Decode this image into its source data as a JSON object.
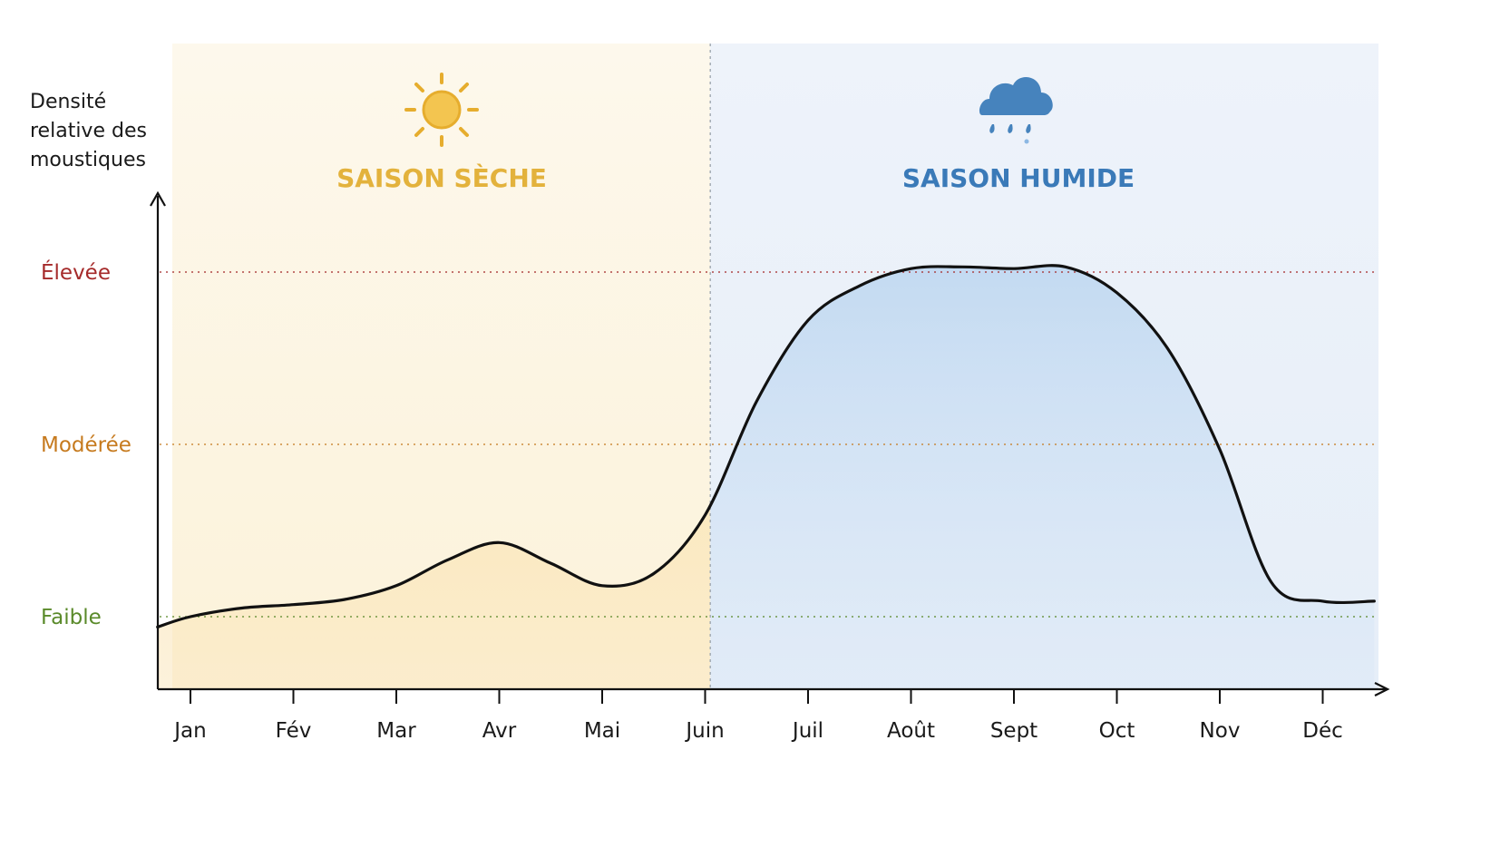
{
  "chart_data": {
    "type": "area",
    "ylabel": [
      "Densité",
      "relative des",
      "moustiques"
    ],
    "categories": [
      "Jan",
      "Fév",
      "Mar",
      "Avr",
      "Mai",
      "Juin",
      "Juil",
      "Août",
      "Sept",
      "Oct",
      "Nov",
      "Déc"
    ],
    "y_levels": [
      {
        "label": "Élevée",
        "value": 3,
        "color": "#a52a2a"
      },
      {
        "label": "Modérée",
        "value": 2,
        "color": "#c67a1e"
      },
      {
        "label": "Faible",
        "value": 1,
        "color": "#5a8a2a"
      }
    ],
    "ylim": [
      0.57,
      3.45
    ],
    "x_range": [
      -0.35,
      11.5
    ],
    "curve": {
      "x": [
        -0.32,
        0,
        0.5,
        1,
        1.5,
        2,
        2.5,
        3,
        3.5,
        4,
        4.5,
        5,
        5.5,
        6,
        6.5,
        7,
        7.5,
        8,
        8.5,
        9,
        9.5,
        10,
        10.5,
        11,
        11.5
      ],
      "y": [
        0.94,
        1.0,
        1.05,
        1.07,
        1.1,
        1.18,
        1.33,
        1.43,
        1.31,
        1.18,
        1.25,
        1.59,
        2.25,
        2.72,
        2.92,
        3.02,
        3.03,
        3.02,
        3.03,
        2.88,
        2.55,
        1.97,
        1.2,
        1.09,
        1.09
      ]
    },
    "seasons": [
      {
        "name": "SAISON SÈCHE",
        "from": -0.35,
        "to": 5.05,
        "color": "#e3b23c",
        "icon": "sun-icon"
      },
      {
        "name": "SAISON HUMIDE",
        "from": 5.05,
        "to": 11.5,
        "color": "#3a7ab8",
        "icon": "rain-cloud-icon"
      }
    ],
    "season_divider_x": 5.05,
    "grid": "dotted horizontal level lines"
  }
}
